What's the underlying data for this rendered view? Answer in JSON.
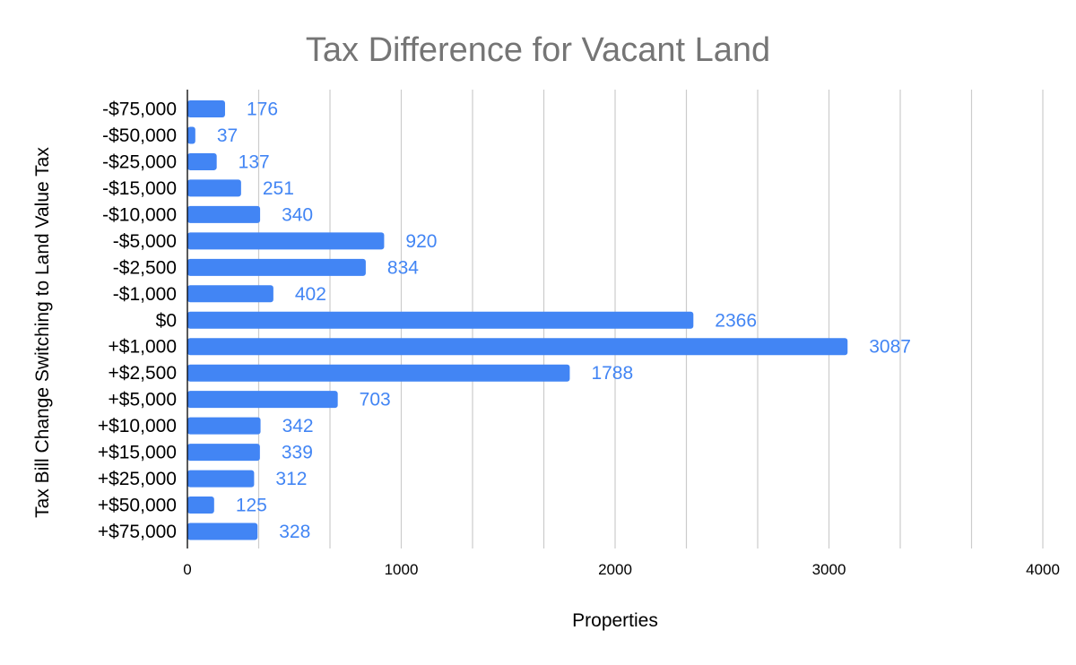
{
  "chart_data": {
    "type": "bar",
    "orientation": "horizontal",
    "title": "Tax Difference for Vacant Land",
    "xlabel": "Properties",
    "ylabel": "Tax Bill Change Switching to Land Value Tax",
    "categories": [
      "-$75,000",
      "-$50,000",
      "-$25,000",
      "-$15,000",
      "-$10,000",
      "-$5,000",
      "-$2,500",
      "-$1,000",
      "$0",
      "+$1,000",
      "+$2,500",
      "+$5,000",
      "+$10,000",
      "+$15,000",
      "+$25,000",
      "+$50,000",
      "+$75,000"
    ],
    "values": [
      176,
      37,
      137,
      251,
      340,
      920,
      834,
      402,
      2366,
      3087,
      1788,
      703,
      342,
      339,
      312,
      125,
      328
    ],
    "data_labels": [
      "176",
      "37",
      "137",
      "251",
      "340",
      "920",
      "834",
      "402",
      "2366",
      "3087",
      "1788",
      "703",
      "342",
      "339",
      "312",
      "125",
      "328"
    ],
    "xlim": [
      0,
      4000
    ],
    "major_ticks": [
      0,
      1000,
      2000,
      3000,
      4000
    ],
    "major_tick_labels": [
      "0",
      "1000",
      "2000",
      "3000",
      "4000"
    ],
    "minor_ticks": [
      333.33,
      666.67,
      1333.33,
      1666.67,
      2333.33,
      2666.67,
      3333.33,
      3666.67
    ],
    "grid": true,
    "legend": "none",
    "colors": {
      "bar": "#4285f4",
      "data_label": "#4285f4",
      "title": "#757575",
      "grid": "#cccccc",
      "axis": "#000000"
    }
  }
}
